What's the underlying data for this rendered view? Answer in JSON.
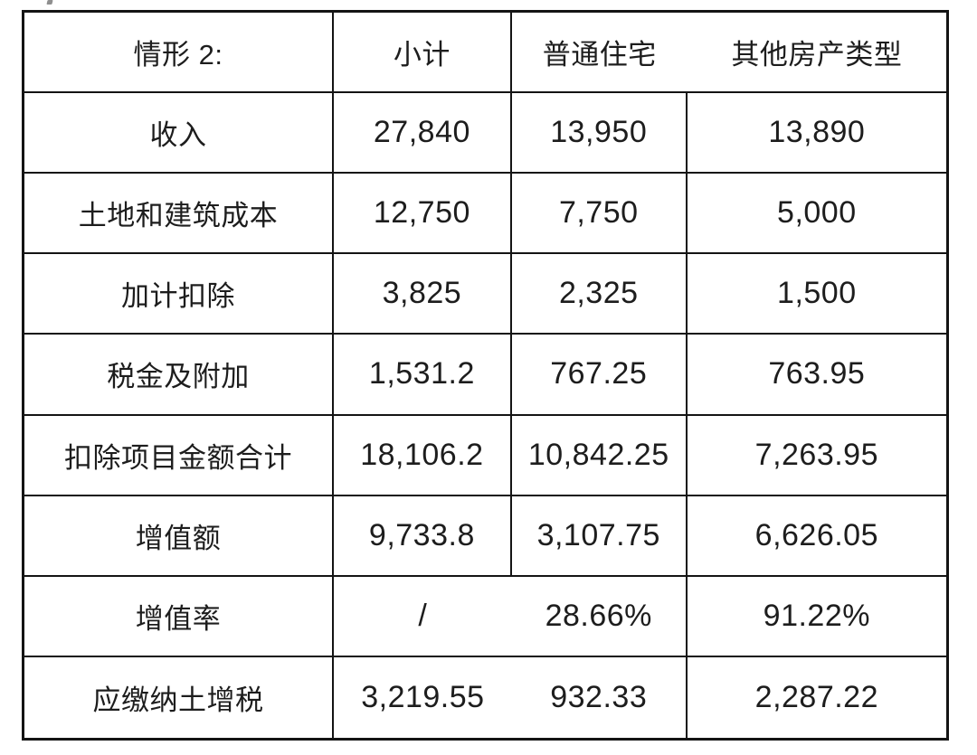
{
  "table": {
    "header": {
      "scenario": "情形 2:",
      "subtotal": "小计",
      "ordinary": "普通住宅",
      "other": "其他房产类型"
    },
    "rows": [
      {
        "label": "收入",
        "subtotal": "27,840",
        "ordinary": "13,950",
        "other": "13,890"
      },
      {
        "label": "土地和建筑成本",
        "subtotal": "12,750",
        "ordinary": "7,750",
        "other": "5,000"
      },
      {
        "label": "加计扣除",
        "subtotal": "3,825",
        "ordinary": "2,325",
        "other": "1,500"
      },
      {
        "label": "税金及附加",
        "subtotal": "1,531.2",
        "ordinary": "767.25",
        "other": "763.95"
      },
      {
        "label": "扣除项目金额合计",
        "subtotal": "18,106.2",
        "ordinary": "10,842.25",
        "other": "7,263.95"
      },
      {
        "label": "增值额",
        "subtotal": "9,733.8",
        "ordinary": "3,107.75",
        "other": "6,626.05"
      },
      {
        "label": "增值率",
        "subtotal": "/",
        "ordinary": "28.66%",
        "other": "91.22%"
      },
      {
        "label": "应缴纳土增税",
        "subtotal": "3,219.55",
        "ordinary": "932.33",
        "other": "2,287.22"
      }
    ],
    "colors": {
      "line": "#141414",
      "text": "#1d1d1d",
      "background": "#ffffff"
    }
  }
}
